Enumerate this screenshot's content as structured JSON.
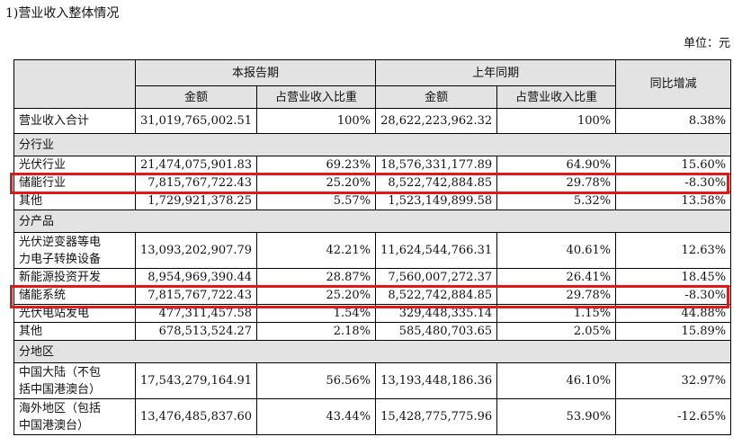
{
  "title": "1)营业收入整体情况",
  "unit": "单位：元",
  "header": {
    "current_period": "本报告期",
    "prior_period": "上年同期",
    "yoy": "同比增减",
    "amount": "金额",
    "share": "占营业收入比重"
  },
  "total": {
    "label": "营业收入合计",
    "cur_amount": "31,019,765,002.51",
    "cur_share": "100%",
    "prior_amount": "28,622,223,962.32",
    "prior_share": "100%",
    "yoy": "8.38%"
  },
  "sections": [
    {
      "label": "分行业",
      "rows": [
        {
          "label": "光伏行业",
          "cur_amount": "21,474,075,901.83",
          "cur_share": "69.23%",
          "prior_amount": "18,576,331,177.89",
          "prior_share": "64.90%",
          "yoy": "15.60%"
        },
        {
          "label": "储能行业",
          "cur_amount": "7,815,767,722.43",
          "cur_share": "25.20%",
          "prior_amount": "8,522,742,884.85",
          "prior_share": "29.78%",
          "yoy": "-8.30%"
        },
        {
          "label": "其他",
          "cur_amount": "1,729,921,378.25",
          "cur_share": "5.57%",
          "prior_amount": "1,523,149,899.58",
          "prior_share": "5.32%",
          "yoy": "13.58%"
        }
      ]
    },
    {
      "label": "分产品",
      "rows": [
        {
          "label_1": "光伏逆变器等电",
          "label_2": "力电子转换设备",
          "cur_amount": "13,093,202,907.79",
          "cur_share": "42.21%",
          "prior_amount": "11,624,544,766.31",
          "prior_share": "40.61%",
          "yoy": "12.63%"
        },
        {
          "label": "新能源投资开发",
          "cur_amount": "8,954,969,390.44",
          "cur_share": "28.87%",
          "prior_amount": "7,560,007,272.37",
          "prior_share": "26.41%",
          "yoy": "18.45%"
        },
        {
          "label": "储能系统",
          "cur_amount": "7,815,767,722.43",
          "cur_share": "25.20%",
          "prior_amount": "8,522,742,884.85",
          "prior_share": "29.78%",
          "yoy": "-8.30%"
        },
        {
          "label": "光伏电站发电",
          "cur_amount": "477,311,457.58",
          "cur_share": "1.54%",
          "prior_amount": "329,448,335.14",
          "prior_share": "1.15%",
          "yoy": "44.88%"
        },
        {
          "label": "其他",
          "cur_amount": "678,513,524.27",
          "cur_share": "2.18%",
          "prior_amount": "585,480,703.65",
          "prior_share": "2.05%",
          "yoy": "15.89%"
        }
      ]
    },
    {
      "label": "分地区",
      "rows": [
        {
          "label_1": "中国大陆（不包",
          "label_2": "括中国港澳台）",
          "cur_amount": "17,543,279,164.91",
          "cur_share": "56.56%",
          "prior_amount": "13,193,448,186.36",
          "prior_share": "46.10%",
          "yoy": "32.97%"
        },
        {
          "label_1": "海外地区（包括",
          "label_2": "中国港澳台）",
          "cur_amount": "13,476,485,837.60",
          "cur_share": "43.44%",
          "prior_amount": "15,428,775,775.96",
          "prior_share": "53.90%",
          "yoy": "-12.65%"
        }
      ]
    }
  ],
  "highlight_color": "#e0191b"
}
